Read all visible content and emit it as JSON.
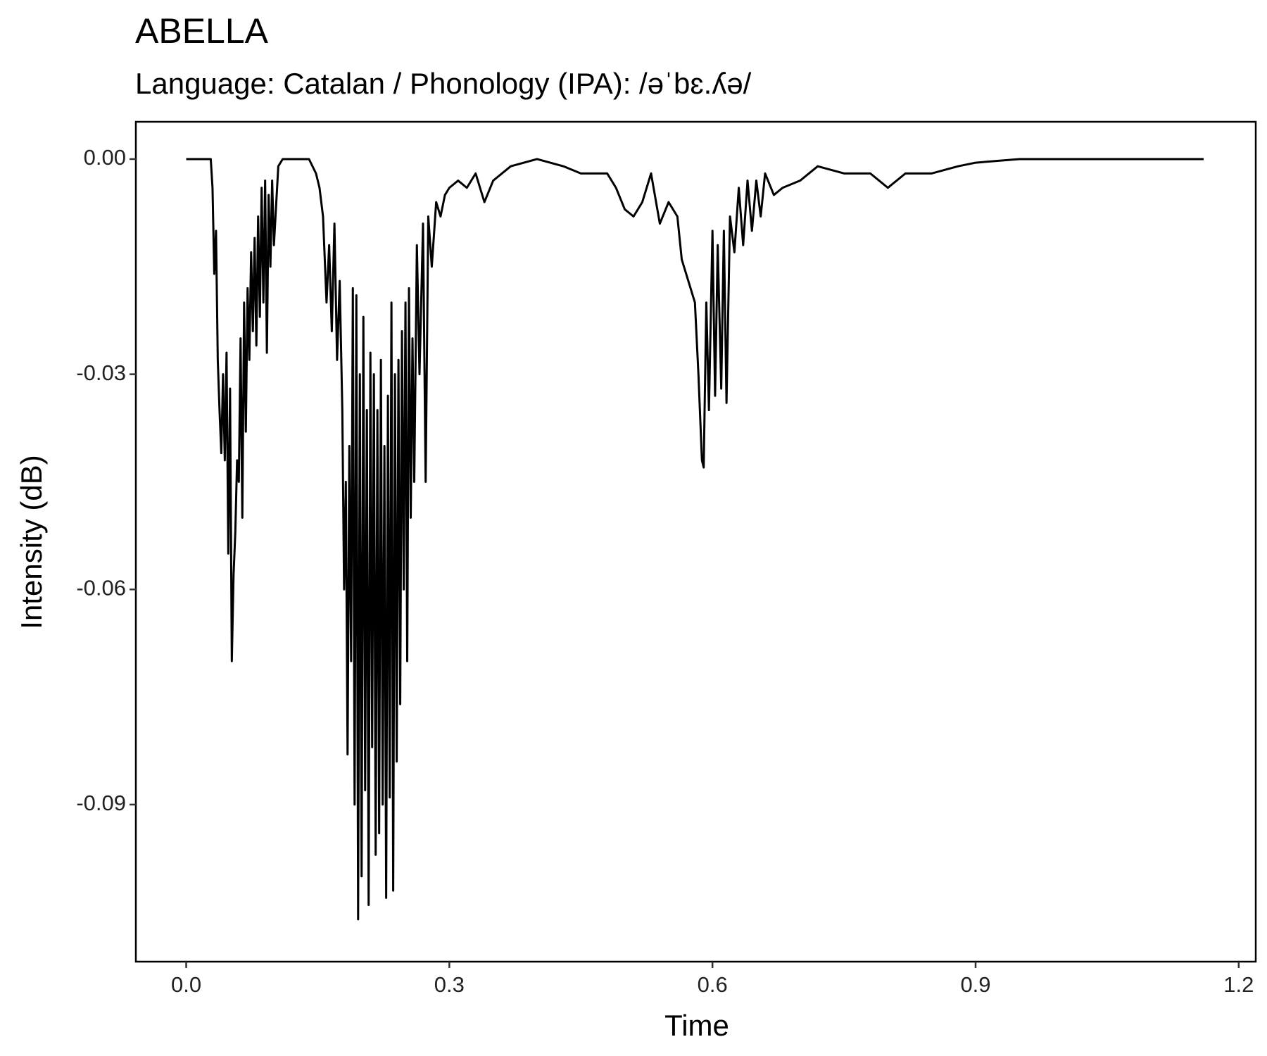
{
  "chart_data": {
    "type": "line",
    "title": "ABELLA",
    "subtitle": "Language: Catalan / Phonology (IPA): /əˈbɛ.ʎə/",
    "x_label": "Time",
    "y_label": "Intensity (dB)",
    "color": "#000000",
    "xlim": [
      -0.0574,
      1.2194
    ],
    "ylim": [
      -0.1119,
      0.0052
    ],
    "xticks": [
      {
        "value": 0,
        "label": "0.0"
      },
      0.3,
      0.6,
      0.9,
      1.2
    ],
    "yticks": [
      {
        "value": 0,
        "label": "0.00"
      },
      -0.03,
      -0.06,
      -0.09
    ],
    "x": [
      0,
      0.02,
      0.028,
      0.03,
      0.032,
      0.034,
      0.036,
      0.038,
      0.04,
      0.042,
      0.044,
      0.046,
      0.048,
      0.05,
      0.052,
      0.054,
      0.056,
      0.058,
      0.06,
      0.062,
      0.064,
      0.066,
      0.068,
      0.07,
      0.072,
      0.074,
      0.076,
      0.078,
      0.08,
      0.082,
      0.084,
      0.086,
      0.088,
      0.09,
      0.092,
      0.094,
      0.096,
      0.098,
      0.1,
      0.105,
      0.11,
      0.12,
      0.13,
      0.14,
      0.148,
      0.152,
      0.156,
      0.16,
      0.163,
      0.166,
      0.169,
      0.172,
      0.175,
      0.178,
      0.18,
      0.182,
      0.184,
      0.186,
      0.188,
      0.19,
      0.192,
      0.194,
      0.196,
      0.198,
      0.2,
      0.202,
      0.204,
      0.206,
      0.208,
      0.21,
      0.212,
      0.214,
      0.216,
      0.218,
      0.22,
      0.222,
      0.224,
      0.226,
      0.228,
      0.23,
      0.232,
      0.234,
      0.236,
      0.238,
      0.24,
      0.242,
      0.244,
      0.246,
      0.248,
      0.25,
      0.252,
      0.254,
      0.256,
      0.258,
      0.26,
      0.263,
      0.266,
      0.27,
      0.273,
      0.276,
      0.28,
      0.285,
      0.29,
      0.295,
      0.3,
      0.31,
      0.32,
      0.33,
      0.34,
      0.35,
      0.37,
      0.4,
      0.43,
      0.45,
      0.47,
      0.48,
      0.49,
      0.5,
      0.51,
      0.52,
      0.53,
      0.54,
      0.55,
      0.56,
      0.565,
      0.57,
      0.575,
      0.58,
      0.584,
      0.588,
      0.59,
      0.593,
      0.596,
      0.6,
      0.603,
      0.606,
      0.61,
      0.613,
      0.616,
      0.62,
      0.625,
      0.63,
      0.635,
      0.64,
      0.645,
      0.65,
      0.655,
      0.66,
      0.67,
      0.68,
      0.7,
      0.72,
      0.75,
      0.78,
      0.8,
      0.82,
      0.85,
      0.88,
      0.9,
      0.95,
      1.0,
      1.05,
      1.1,
      1.16
    ],
    "values": [
      0,
      0,
      0,
      -0.004,
      -0.016,
      -0.01,
      -0.028,
      -0.035,
      -0.041,
      -0.03,
      -0.042,
      -0.027,
      -0.055,
      -0.032,
      -0.07,
      -0.058,
      -0.052,
      -0.042,
      -0.045,
      -0.025,
      -0.05,
      -0.02,
      -0.038,
      -0.018,
      -0.028,
      -0.013,
      -0.024,
      -0.011,
      -0.026,
      -0.008,
      -0.022,
      -0.004,
      -0.02,
      -0.003,
      -0.027,
      -0.005,
      -0.015,
      -0.003,
      -0.012,
      -0.001,
      0,
      0,
      0,
      0,
      -0.002,
      -0.004,
      -0.008,
      -0.02,
      -0.012,
      -0.024,
      -0.009,
      -0.028,
      -0.017,
      -0.035,
      -0.06,
      -0.045,
      -0.083,
      -0.04,
      -0.07,
      -0.018,
      -0.09,
      -0.019,
      -0.106,
      -0.03,
      -0.1,
      -0.022,
      -0.088,
      -0.035,
      -0.104,
      -0.027,
      -0.082,
      -0.03,
      -0.097,
      -0.035,
      -0.094,
      -0.028,
      -0.09,
      -0.04,
      -0.103,
      -0.033,
      -0.089,
      -0.02,
      -0.102,
      -0.03,
      -0.084,
      -0.028,
      -0.076,
      -0.024,
      -0.06,
      -0.02,
      -0.07,
      -0.018,
      -0.05,
      -0.025,
      -0.045,
      -0.012,
      -0.03,
      -0.009,
      -0.045,
      -0.008,
      -0.015,
      -0.006,
      -0.008,
      -0.005,
      -0.004,
      -0.003,
      -0.004,
      -0.002,
      -0.006,
      -0.003,
      -0.001,
      0,
      -0.001,
      -0.002,
      -0.002,
      -0.002,
      -0.004,
      -0.007,
      -0.008,
      -0.006,
      -0.002,
      -0.009,
      -0.006,
      -0.008,
      -0.014,
      -0.016,
      -0.018,
      -0.02,
      -0.03,
      -0.042,
      -0.043,
      -0.02,
      -0.035,
      -0.01,
      -0.033,
      -0.012,
      -0.032,
      -0.01,
      -0.034,
      -0.008,
      -0.013,
      -0.004,
      -0.012,
      -0.003,
      -0.01,
      -0.003,
      -0.008,
      -0.002,
      -0.005,
      -0.004,
      -0.003,
      -0.001,
      -0.002,
      -0.002,
      -0.004,
      -0.002,
      -0.002,
      -0.001,
      -0.0005,
      0,
      0,
      0,
      0,
      0
    ]
  }
}
